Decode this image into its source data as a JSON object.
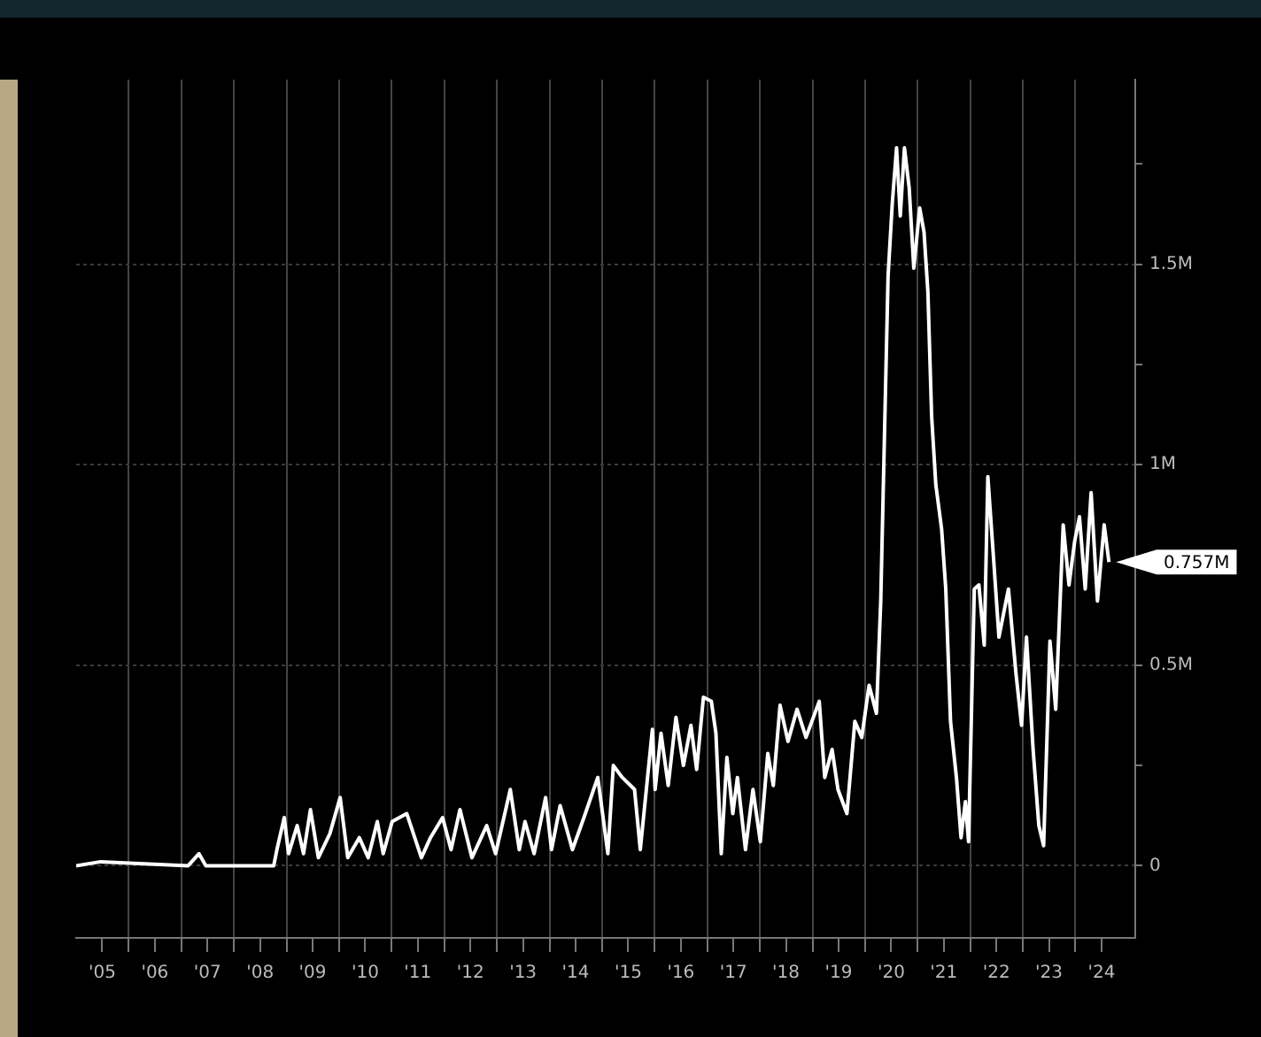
{
  "chart_data": {
    "type": "line",
    "color": "#ffffff",
    "x": [
      "2005-01-01",
      "2005-06-20",
      "2007-02-17",
      "2007-05-03",
      "2007-06-20",
      "2008-09-16",
      "2008-10-04",
      "2008-10-26",
      "2008-12-16",
      "2009-01-15",
      "2009-03-16",
      "2009-04-29",
      "2009-06-16",
      "2009-08-10",
      "2009-10-29",
      "2010-01-08",
      "2010-03-02",
      "2010-05-21",
      "2010-07-22",
      "2010-09-23",
      "2010-11-03",
      "2011-01-04",
      "2011-04-15",
      "2011-07-26",
      "2011-09-27",
      "2011-12-20",
      "2012-02-17",
      "2012-04-19",
      "2012-07-11",
      "2012-10-22",
      "2012-12-23",
      "2013-04-04",
      "2013-06-05",
      "2013-07-15",
      "2013-09-16",
      "2013-12-05",
      "2014-01-15",
      "2014-03-16",
      "2014-06-09",
      "2014-08-28",
      "2014-12-02",
      "2015-02-10",
      "2015-03-20",
      "2015-05-21",
      "2015-08-14",
      "2015-09-23",
      "2015-12-16",
      "2016-01-04",
      "2016-02-14",
      "2016-04-04",
      "2016-05-28",
      "2016-07-19",
      "2016-09-09",
      "2016-10-19",
      "2016-12-05",
      "2017-01-29",
      "2017-03-02",
      "2017-04-08",
      "2017-05-17",
      "2017-06-27",
      "2017-07-29",
      "2017-09-23",
      "2017-11-14",
      "2018-01-04",
      "2018-02-25",
      "2018-04-04",
      "2018-05-21",
      "2018-07-15",
      "2018-09-16",
      "2018-11-17",
      "2019-02-17",
      "2019-03-27",
      "2019-05-17",
      "2019-06-27",
      "2019-08-28",
      "2019-10-22",
      "2019-12-09",
      "2020-01-29",
      "2020-03-20",
      "2020-04-19",
      "2020-06-09",
      "2020-07-08",
      "2020-08-07",
      "2020-09-02",
      "2020-10-01",
      "2020-11-03",
      "2020-12-05",
      "2021-01-15",
      "2021-02-14",
      "2021-03-13",
      "2021-04-08",
      "2021-05-07",
      "2021-06-16",
      "2021-07-15",
      "2021-08-17",
      "2021-09-27",
      "2021-10-29",
      "2021-11-28",
      "2021-12-20",
      "2022-01-29",
      "2022-03-02",
      "2022-04-08",
      "2022-05-03",
      "2022-06-09",
      "2022-07-19",
      "2022-09-23",
      "2022-11-14",
      "2022-12-23",
      "2023-01-26",
      "2023-03-13",
      "2023-04-22",
      "2023-05-25",
      "2023-07-08",
      "2023-08-17",
      "2023-10-08",
      "2023-11-17",
      "2023-12-27",
      "2024-01-29",
      "2024-03-09",
      "2024-04-19",
      "2024-06-02",
      "2024-07-19",
      "2024-08-21"
    ],
    "values": [
      0,
      0.01,
      0,
      0.03,
      0,
      0,
      0,
      0.04,
      0.12,
      0.03,
      0.1,
      0.03,
      0.14,
      0.02,
      0.08,
      0.17,
      0.02,
      0.07,
      0.02,
      0.11,
      0.03,
      0.11,
      0.13,
      0.02,
      0.07,
      0.12,
      0.04,
      0.14,
      0.02,
      0.1,
      0.03,
      0.19,
      0.04,
      0.11,
      0.03,
      0.17,
      0.04,
      0.15,
      0.04,
      0.12,
      0.22,
      0.03,
      0.25,
      0.22,
      0.19,
      0.04,
      0.34,
      0.19,
      0.33,
      0.2,
      0.37,
      0.25,
      0.35,
      0.24,
      0.42,
      0.41,
      0.33,
      0.03,
      0.27,
      0.13,
      0.22,
      0.04,
      0.19,
      0.06,
      0.28,
      0.2,
      0.4,
      0.31,
      0.39,
      0.32,
      0.41,
      0.22,
      0.29,
      0.19,
      0.13,
      0.36,
      0.32,
      0.45,
      0.38,
      0.66,
      1.47,
      1.65,
      1.79,
      1.62,
      1.79,
      1.69,
      1.49,
      1.64,
      1.58,
      1.43,
      1.12,
      0.95,
      0.84,
      0.69,
      0.36,
      0.22,
      0.07,
      0.16,
      0.06,
      0.69,
      0.7,
      0.55,
      0.97,
      0.78,
      0.57,
      0.69,
      0.48,
      0.35,
      0.57,
      0.29,
      0.1,
      0.05,
      0.56,
      0.39,
      0.85,
      0.7,
      0.81,
      0.87,
      0.69,
      0.93,
      0.66,
      0.85,
      0.757
    ],
    "xlim": [
      "2005-01-01",
      "2025-02-20"
    ],
    "ylim": [
      -0.18,
      1.96
    ],
    "xticks": [
      {
        "value": "2005-07",
        "label": "'05"
      },
      {
        "value": "2006",
        "label": null
      },
      {
        "value": "2006-07",
        "label": "'06"
      },
      {
        "value": "2007",
        "label": null
      },
      {
        "value": "2007-07",
        "label": "'07"
      },
      {
        "value": "2008",
        "label": null
      },
      {
        "value": "2008-07",
        "label": "'08"
      },
      {
        "value": "2009",
        "label": null
      },
      {
        "value": "2009-07",
        "label": "'09"
      },
      {
        "value": "2010",
        "label": null
      },
      {
        "value": "2010-07",
        "label": "'10"
      },
      {
        "value": "2011",
        "label": null
      },
      {
        "value": "2011-07",
        "label": "'11"
      },
      {
        "value": "2012",
        "label": null
      },
      {
        "value": "2012-07",
        "label": "'12"
      },
      {
        "value": "2013",
        "label": null
      },
      {
        "value": "2013-07",
        "label": "'13"
      },
      {
        "value": "2014",
        "label": null
      },
      {
        "value": "2014-07",
        "label": "'14"
      },
      {
        "value": "2015",
        "label": null
      },
      {
        "value": "2015-07",
        "label": "'15"
      },
      {
        "value": "2016",
        "label": null
      },
      {
        "value": "2016-07",
        "label": "'16"
      },
      {
        "value": "2017",
        "label": null
      },
      {
        "value": "2017-07",
        "label": "'17"
      },
      {
        "value": "2018",
        "label": null
      },
      {
        "value": "2018-07",
        "label": "'18"
      },
      {
        "value": "2019",
        "label": null
      },
      {
        "value": "2019-07",
        "label": "'19"
      },
      {
        "value": "2020",
        "label": null
      },
      {
        "value": "2020-07",
        "label": "'20"
      },
      {
        "value": "2021",
        "label": null
      },
      {
        "value": "2021-07",
        "label": "'21"
      },
      {
        "value": "2022",
        "label": null
      },
      {
        "value": "2022-07",
        "label": "'22"
      },
      {
        "value": "2023",
        "label": null
      },
      {
        "value": "2023-07",
        "label": "'23"
      },
      {
        "value": "2024",
        "label": null
      },
      {
        "value": "2024-07",
        "label": "'24"
      }
    ],
    "yticks": [
      0,
      {
        "value": 0.25,
        "label": null
      },
      {
        "value": 0.5,
        "label": "0.5M"
      },
      {
        "value": 0.75,
        "label": null
      },
      {
        "value": 1,
        "label": "1M"
      },
      {
        "value": 1.25,
        "label": null
      },
      {
        "value": 1.5,
        "label": "1.5M"
      },
      {
        "value": 1.75,
        "label": null
      }
    ],
    "grid": true,
    "annotations": [
      "0.757M"
    ]
  }
}
